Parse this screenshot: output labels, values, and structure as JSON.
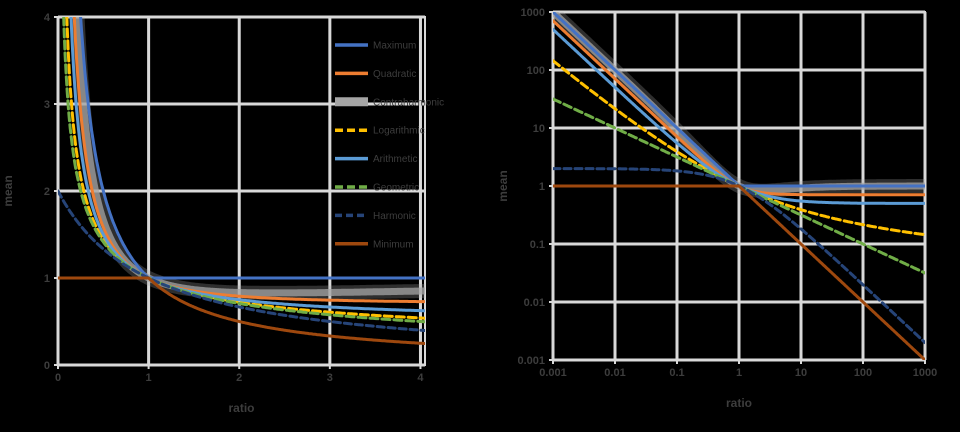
{
  "chart_data": {
    "type": "line",
    "figure": {
      "background": "#000000",
      "grid_color": "#D9D9D9",
      "text_color": "#3D3D3D",
      "tick_font_px": 11,
      "title_font_px": 12,
      "legend_font_px": 10
    },
    "series": [
      {
        "label": "Maximum",
        "formula_id": "max",
        "formula": "max(1, 1/x)",
        "color": "#4472C4",
        "dash": "solid",
        "width": 3,
        "z": 2,
        "band": false
      },
      {
        "label": "Quadratic",
        "formula_id": "rms",
        "formula": "sqrt((1+x^-2)/2)",
        "color": "#ED7D31",
        "dash": "solid",
        "width": 3,
        "z": 3,
        "band": false
      },
      {
        "label": "Contraharmonic",
        "formula_id": "contraharmonic",
        "formula": "(1+x^-2)/(1+x^-1)",
        "color": "#A5A5A5",
        "dash": "solid",
        "width": 8,
        "z": 1,
        "band": true
      },
      {
        "label": "Logarithmic",
        "formula_id": "logarithmic",
        "formula": "(1/x-1)/ln(1/x)",
        "color": "#FFC000",
        "dash": "8 4",
        "width": 3,
        "z": 4,
        "band": false
      },
      {
        "label": "Arithmetic",
        "formula_id": "arithmetic",
        "formula": "(1+1/x)/2",
        "color": "#5B9BD5",
        "dash": "solid",
        "width": 3,
        "z": 5,
        "band": false
      },
      {
        "label": "Geometric",
        "formula_id": "geometric",
        "formula": "x^-0.5",
        "color": "#70AD47",
        "dash": "8 4",
        "width": 3,
        "z": 6,
        "band": false
      },
      {
        "label": "Harmonic",
        "formula_id": "harmonic",
        "formula": "2/(1+x)",
        "color": "#264478",
        "dash": "7 4",
        "width": 3,
        "z": 7,
        "band": false
      },
      {
        "label": "Minimum",
        "formula_id": "min",
        "formula": "min(1, 1/x)",
        "color": "#9E480E",
        "dash": "solid",
        "width": 3,
        "z": 8,
        "band": false
      }
    ],
    "charts": [
      {
        "id": "linear",
        "x_scale": "linear",
        "y_scale": "linear",
        "xlabel": "ratio",
        "ylabel": "mean",
        "x_ticks": [
          "0",
          "1",
          "2",
          "3",
          "4"
        ],
        "y_ticks": [
          "4",
          "3",
          "2",
          "1",
          "0"
        ],
        "x_min": 0,
        "x_max": 4.05,
        "y_min": 0,
        "y_max": 4,
        "grid": true,
        "legend": "inside-right"
      },
      {
        "id": "loglog",
        "x_scale": "log",
        "y_scale": "log",
        "xlabel": "ratio",
        "ylabel": "mean",
        "x_ticks": [
          "0.001",
          "0.01",
          "0.1",
          "1",
          "10",
          "100",
          "1000"
        ],
        "y_ticks": [
          "1000",
          "100",
          "10",
          "1",
          "0.1",
          "0.01",
          "0.001"
        ],
        "x_min": 0.001,
        "x_max": 1000,
        "y_min": 0.001,
        "y_max": 1000,
        "grid": true,
        "legend": "none"
      }
    ]
  }
}
